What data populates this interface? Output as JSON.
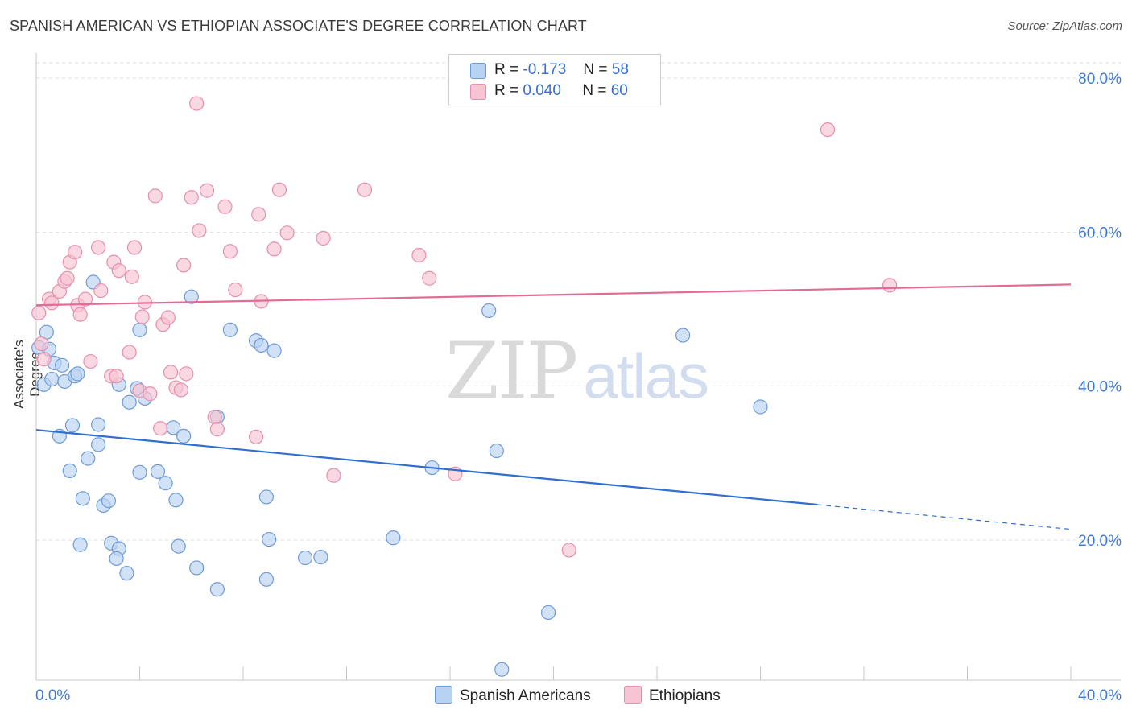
{
  "title": "SPANISH AMERICAN VS ETHIOPIAN ASSOCIATE'S DEGREE CORRELATION CHART",
  "source": "Source: ZipAtlas.com",
  "watermark": {
    "zip": "ZIP",
    "atlas": "atlas"
  },
  "legend": {
    "r_label": "R =",
    "n_label": "N =",
    "rows": [
      {
        "r": "-0.173",
        "n": "58"
      },
      {
        "r": "0.040",
        "n": "60"
      }
    ]
  },
  "bottom_legend": [
    "Spanish Americans",
    "Ethiopians"
  ],
  "colors": {
    "blue_fill": "#b8d2f3",
    "blue_stroke": "#6f9ad8",
    "blue_line": "#2f6fd0",
    "pink_fill": "#f8c3d3",
    "pink_stroke": "#e68fab",
    "pink_line": "#e36b94",
    "tick_text": "#3f7ad6",
    "grid": "#dddddd"
  },
  "chart_data": {
    "type": "scatter",
    "title": "SPANISH AMERICAN VS ETHIOPIAN ASSOCIATE'S DEGREE CORRELATION CHART",
    "xlabel": "",
    "ylabel": "Associate's Degree",
    "xlim": [
      0,
      40
    ],
    "ylim": [
      0,
      80
    ],
    "x_tick_labels": [
      "0.0%",
      "40.0%"
    ],
    "y_ticks": [
      20,
      40,
      60,
      80
    ],
    "y_tick_labels": [
      "20.0%",
      "40.0%",
      "60.0%",
      "80.0%"
    ],
    "grid": true,
    "legend_position": "top-center",
    "series": [
      {
        "name": "Spanish Americans",
        "r": -0.173,
        "n": 58,
        "trend": {
          "x0": 0,
          "y0": 34.3,
          "x1": 30.2,
          "y1": 24.6,
          "dashed_to_x": 40,
          "dashed_to_y": 21.4
        },
        "points": [
          [
            0.1,
            45.0
          ],
          [
            0.4,
            47.0
          ],
          [
            0.5,
            44.8
          ],
          [
            0.7,
            43.0
          ],
          [
            0.3,
            40.2
          ],
          [
            0.6,
            40.9
          ],
          [
            1.0,
            42.7
          ],
          [
            1.1,
            40.6
          ],
          [
            1.5,
            41.3
          ],
          [
            1.6,
            41.6
          ],
          [
            2.2,
            53.5
          ],
          [
            0.9,
            33.5
          ],
          [
            1.4,
            34.9
          ],
          [
            2.4,
            35.0
          ],
          [
            2.4,
            32.4
          ],
          [
            2.0,
            30.6
          ],
          [
            1.3,
            29.0
          ],
          [
            1.8,
            25.4
          ],
          [
            2.6,
            24.5
          ],
          [
            2.8,
            25.1
          ],
          [
            1.7,
            19.4
          ],
          [
            2.9,
            19.6
          ],
          [
            3.2,
            18.9
          ],
          [
            3.1,
            17.6
          ],
          [
            3.5,
            15.7
          ],
          [
            3.2,
            40.2
          ],
          [
            3.6,
            37.9
          ],
          [
            3.9,
            39.7
          ],
          [
            4.0,
            47.3
          ],
          [
            4.2,
            38.4
          ],
          [
            4.0,
            28.8
          ],
          [
            4.7,
            28.9
          ],
          [
            5.0,
            27.4
          ],
          [
            5.3,
            34.6
          ],
          [
            5.7,
            33.5
          ],
          [
            5.4,
            25.2
          ],
          [
            5.5,
            19.2
          ],
          [
            6.0,
            51.6
          ],
          [
            6.2,
            16.4
          ],
          [
            7.0,
            36.0
          ],
          [
            7.0,
            13.6
          ],
          [
            7.5,
            47.3
          ],
          [
            8.5,
            45.9
          ],
          [
            8.7,
            45.3
          ],
          [
            9.2,
            44.6
          ],
          [
            8.9,
            25.6
          ],
          [
            9.0,
            20.1
          ],
          [
            8.9,
            14.9
          ],
          [
            10.4,
            17.7
          ],
          [
            11.0,
            17.8
          ],
          [
            13.8,
            20.3
          ],
          [
            15.3,
            29.4
          ],
          [
            17.5,
            49.8
          ],
          [
            17.8,
            31.6
          ],
          [
            19.8,
            10.6
          ],
          [
            18.0,
            3.2
          ],
          [
            25.0,
            46.6
          ],
          [
            28.0,
            37.3
          ]
        ]
      },
      {
        "name": "Ethiopians",
        "r": 0.04,
        "n": 60,
        "trend": {
          "x0": 0,
          "y0": 50.5,
          "x1": 40,
          "y1": 53.2
        },
        "points": [
          [
            0.1,
            49.5
          ],
          [
            0.2,
            45.5
          ],
          [
            0.5,
            51.3
          ],
          [
            0.6,
            50.8
          ],
          [
            0.9,
            52.3
          ],
          [
            1.1,
            53.6
          ],
          [
            1.2,
            54.0
          ],
          [
            1.3,
            56.1
          ],
          [
            1.5,
            57.4
          ],
          [
            1.6,
            50.5
          ],
          [
            1.7,
            49.3
          ],
          [
            1.9,
            51.3
          ],
          [
            2.1,
            43.2
          ],
          [
            2.5,
            52.4
          ],
          [
            2.4,
            58.0
          ],
          [
            2.9,
            41.3
          ],
          [
            3.0,
            56.1
          ],
          [
            3.1,
            41.3
          ],
          [
            3.2,
            55.0
          ],
          [
            3.6,
            44.4
          ],
          [
            3.7,
            54.2
          ],
          [
            3.8,
            58.0
          ],
          [
            4.0,
            39.4
          ],
          [
            4.1,
            49.0
          ],
          [
            4.2,
            50.9
          ],
          [
            4.4,
            39.0
          ],
          [
            4.6,
            64.7
          ],
          [
            4.8,
            34.5
          ],
          [
            4.9,
            48.0
          ],
          [
            5.1,
            48.9
          ],
          [
            5.2,
            41.8
          ],
          [
            5.4,
            39.8
          ],
          [
            5.6,
            39.5
          ],
          [
            5.7,
            55.7
          ],
          [
            5.8,
            41.6
          ],
          [
            6.0,
            64.5
          ],
          [
            6.3,
            60.2
          ],
          [
            6.6,
            65.4
          ],
          [
            6.9,
            36.0
          ],
          [
            7.0,
            34.4
          ],
          [
            7.3,
            63.3
          ],
          [
            7.5,
            57.5
          ],
          [
            7.7,
            52.5
          ],
          [
            8.5,
            33.4
          ],
          [
            8.6,
            62.3
          ],
          [
            8.7,
            51.0
          ],
          [
            9.2,
            57.8
          ],
          [
            9.4,
            65.5
          ],
          [
            9.7,
            59.9
          ],
          [
            11.1,
            59.2
          ],
          [
            11.5,
            28.4
          ],
          [
            12.7,
            65.5
          ],
          [
            14.8,
            57.0
          ],
          [
            15.2,
            54.0
          ],
          [
            16.2,
            28.6
          ],
          [
            6.2,
            76.7
          ],
          [
            20.6,
            18.7
          ],
          [
            30.6,
            73.3
          ],
          [
            33.0,
            53.1
          ],
          [
            0.3,
            43.5
          ]
        ]
      }
    ]
  }
}
